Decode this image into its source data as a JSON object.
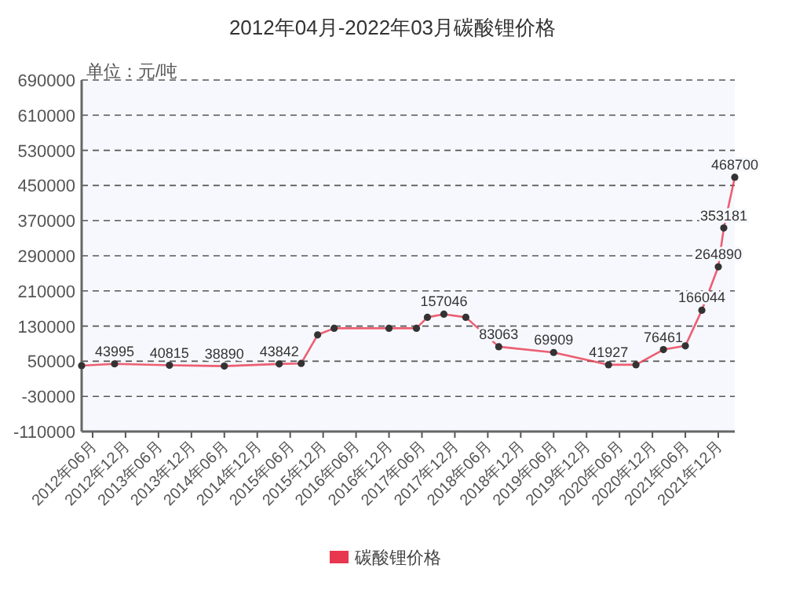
{
  "chart_data": {
    "type": "line",
    "title": "2012年04月-2022年03月碳酸锂价格",
    "annotations": [
      "单位：元/吨"
    ],
    "xlim": [
      "2012-04",
      "2022-03"
    ],
    "xticks": [
      {
        "value": "2012-06",
        "label": "2012年06月"
      },
      {
        "value": "2012-12",
        "label": "2012年12月"
      },
      {
        "value": "2013-06",
        "label": "2013年06月"
      },
      {
        "value": "2013-12",
        "label": "2013年12月"
      },
      {
        "value": "2014-06",
        "label": "2014年06月"
      },
      {
        "value": "2014-12",
        "label": "2014年12月"
      },
      {
        "value": "2015-06",
        "label": "2015年06月"
      },
      {
        "value": "2015-12",
        "label": "2015年12月"
      },
      {
        "value": "2016-06",
        "label": "2016年06月"
      },
      {
        "value": "2016-12",
        "label": "2016年12月"
      },
      {
        "value": "2017-06",
        "label": "2017年06月"
      },
      {
        "value": "2017-12",
        "label": "2017年12月"
      },
      {
        "value": "2018-06",
        "label": "2018年06月"
      },
      {
        "value": "2018-12",
        "label": "2018年12月"
      },
      {
        "value": "2019-06",
        "label": "2019年06月"
      },
      {
        "value": "2019-12",
        "label": "2019年12月"
      },
      {
        "value": "2020-06",
        "label": "2020年06月"
      },
      {
        "value": "2020-12",
        "label": "2020年12月"
      },
      {
        "value": "2021-06",
        "label": "2021年06月"
      },
      {
        "value": "2021-12",
        "label": "2021年12月"
      }
    ],
    "ylim": [
      -110000,
      690000
    ],
    "yticks": [
      -110000,
      -30000,
      50000,
      130000,
      210000,
      290000,
      370000,
      450000,
      530000,
      610000,
      690000
    ],
    "grid": "y",
    "legend": "bottom",
    "marker": "circle",
    "series": [
      {
        "name": "碳酸锂价格",
        "color": "#e8384f",
        "x": [
          "2012-04",
          "2012-10",
          "2013-08",
          "2014-06",
          "2015-04",
          "2015-08",
          "2015-11",
          "2016-02",
          "2016-12",
          "2017-05",
          "2017-07",
          "2017-10",
          "2018-02",
          "2018-08",
          "2019-06",
          "2020-04",
          "2020-09",
          "2021-02",
          "2021-06",
          "2021-09",
          "2021-12",
          "2022-01",
          "2022-03"
        ],
        "values": [
          40000,
          43995,
          40815,
          38890,
          43842,
          45000,
          110000,
          125000,
          125000,
          125000,
          150000,
          157046,
          150000,
          83063,
          69909,
          41927,
          42000,
          76461,
          85000,
          166044,
          264890,
          353181,
          468700
        ],
        "value_labels": [
          null,
          "43995",
          "40815",
          "38890",
          "43842",
          null,
          null,
          null,
          null,
          null,
          null,
          "157046",
          null,
          "83063",
          "69909",
          "41927",
          null,
          "76461",
          null,
          "166044",
          "264890",
          "353181",
          "468700"
        ]
      }
    ]
  }
}
